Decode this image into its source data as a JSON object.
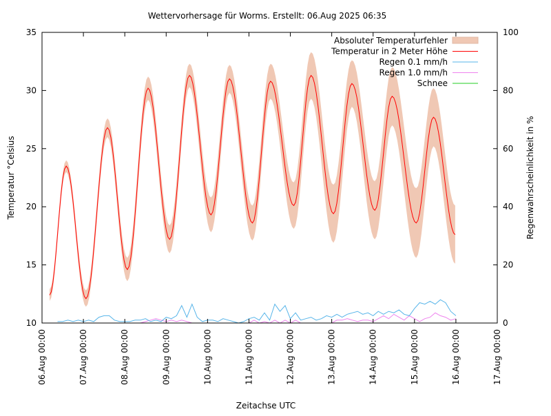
{
  "chart_data": {
    "type": "line",
    "title": "Wettervorhersage für Worms. Erstellt: 06.Aug 2025 06:35",
    "xlabel": "Zeitachse UTC",
    "ylabel": "Temperatur °Celsius",
    "y2label": "Regenwahrscheinlichkeit in %",
    "xlim_hours": [
      0,
      264
    ],
    "ylim": [
      10,
      35
    ],
    "y2lim": [
      0,
      100
    ],
    "x_tick_labels": [
      "06.Aug 00:00",
      "07.Aug 00:00",
      "08.Aug 00:00",
      "09.Aug 00:00",
      "10.Aug 00:00",
      "11.Aug 00:00",
      "12.Aug 00:00",
      "13.Aug 00:00",
      "14.Aug 00:00",
      "15.Aug 00:00",
      "16.Aug 00:00",
      "17.Aug 00:00"
    ],
    "y_ticks": [
      10,
      15,
      20,
      25,
      30,
      35
    ],
    "y2_ticks": [
      0,
      20,
      40,
      60,
      80,
      100
    ],
    "legend_position": "top-right",
    "legend": [
      {
        "label": "Absoluter Temperaturfehler",
        "color": "#f0c8b4",
        "kind": "band"
      },
      {
        "label": "Temperatur in 2 Meter Höhe",
        "color": "#ff0000",
        "kind": "line"
      },
      {
        "label": "Regen 0.1 mm/h",
        "color": "#56b4e9",
        "kind": "line"
      },
      {
        "label": "Regen 1.0 mm/h",
        "color": "#ee82ee",
        "kind": "line"
      },
      {
        "label": "Schnee",
        "color": "#22cc22",
        "kind": "line"
      }
    ],
    "temperature_extremes": {
      "hours": [
        4.4,
        14,
        25.5,
        38,
        49.5,
        61.5,
        74,
        85.5,
        98,
        108.7,
        122,
        132.5,
        146,
        156,
        169,
        179.7,
        193,
        203,
        217,
        227,
        239.6
      ],
      "celsius": [
        12.4,
        23.5,
        12.1,
        26.8,
        14.6,
        30.2,
        17.2,
        31.3,
        19.3,
        31.0,
        18.6,
        30.8,
        20.1,
        31.3,
        19.4,
        30.6,
        19.7,
        29.5,
        18.6,
        27.7,
        17.6
      ],
      "abs_error": [
        0.5,
        0.5,
        0.7,
        0.8,
        1.0,
        1.0,
        1.2,
        1.0,
        1.5,
        1.2,
        1.5,
        1.5,
        2.0,
        2.0,
        2.5,
        2.0,
        2.5,
        2.5,
        3.0,
        2.5,
        2.5
      ]
    },
    "rain_hours_start": 9,
    "rain_hours_step": 3,
    "rain_01_percent": [
      0.5,
      0.5,
      1,
      0.5,
      1,
      0.5,
      1,
      0.5,
      2,
      2.5,
      2.5,
      1,
      0.5,
      0.5,
      0.5,
      1,
      1,
      1.5,
      0.5,
      1,
      0.5,
      2,
      1.5,
      2.5,
      6,
      2,
      6.5,
      2,
      0.5,
      1,
      1,
      0.5,
      1.5,
      1,
      0.5,
      0,
      0.5,
      1.5,
      2,
      1,
      3.5,
      1,
      6.5,
      4,
      6,
      1.5,
      3.5,
      1,
      1.5,
      2,
      1,
      1.5,
      2.5,
      2,
      3,
      2,
      3,
      3.5,
      4,
      3,
      3.5,
      2.5,
      4,
      3,
      4,
      3.5,
      4.5,
      3,
      2.5,
      5,
      7,
      6.5,
      7.5,
      6.5,
      8,
      7,
      4,
      2.5
    ],
    "rain_10_percent": [
      0,
      0,
      0,
      0,
      0,
      0,
      0,
      0,
      0,
      0,
      0,
      0,
      0,
      0,
      0,
      0,
      0,
      0.5,
      1,
      1.5,
      1,
      0.5,
      1,
      0.5,
      1,
      0.5,
      0,
      0,
      0,
      0,
      0,
      0,
      0,
      0,
      0,
      0,
      0,
      0,
      1,
      0,
      0.5,
      0,
      1,
      0,
      1,
      0,
      1,
      0,
      0,
      0,
      0,
      0,
      0,
      0,
      1,
      1,
      1.5,
      1,
      0.5,
      1,
      1,
      0.5,
      1.5,
      2.5,
      1.5,
      3,
      2,
      1,
      2.5,
      1.5,
      0.5,
      1.5,
      2,
      3.5,
      2.5,
      2,
      1,
      1.5
    ],
    "snow_percent": []
  }
}
